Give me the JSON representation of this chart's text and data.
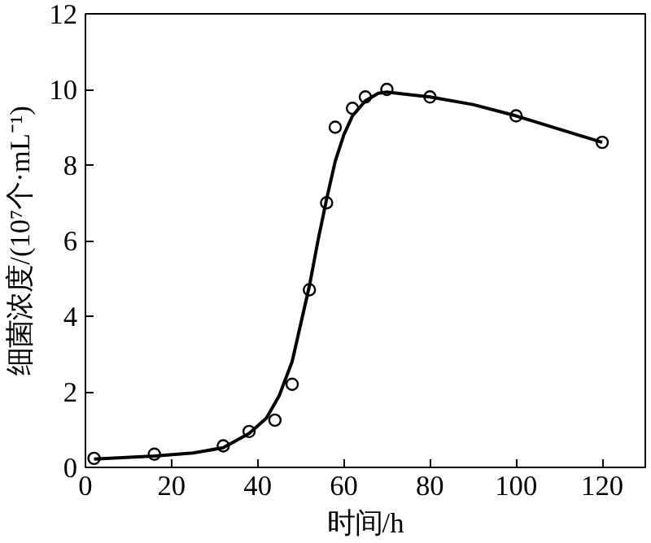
{
  "chart_data": {
    "type": "scatter",
    "xlabel": "时间/h",
    "ylabel": "细菌浓度/(10⁷个·mL⁻¹)",
    "xlim": [
      0,
      130
    ],
    "ylim": [
      0,
      12
    ],
    "xticks": [
      0,
      20,
      40,
      60,
      80,
      100,
      120
    ],
    "yticks": [
      0,
      2,
      4,
      6,
      8,
      10,
      12
    ],
    "grid": false,
    "marker": "circle",
    "series": [
      {
        "color": "#000000",
        "x": [
          2,
          16,
          32,
          38,
          44,
          48,
          52,
          56,
          58,
          62,
          65,
          70,
          80,
          100,
          120
        ],
        "values": [
          0.24,
          0.35,
          0.57,
          0.95,
          1.25,
          2.2,
          4.7,
          7.0,
          9.0,
          9.5,
          9.8,
          10.0,
          9.8,
          9.3,
          8.6
        ]
      },
      {
        "type": "line",
        "color": "#000000",
        "marker": "none",
        "line_style": "solid",
        "x": [
          2,
          16,
          25,
          32,
          38,
          42,
          45,
          48,
          50,
          52,
          54,
          56,
          58,
          60,
          62,
          65,
          68,
          70,
          80,
          90,
          100,
          110,
          120
        ],
        "values": [
          0.22,
          0.3,
          0.38,
          0.52,
          0.9,
          1.3,
          1.9,
          2.8,
          3.8,
          4.8,
          6.0,
          7.1,
          8.1,
          8.8,
          9.3,
          9.7,
          9.9,
          9.93,
          9.8,
          9.6,
          9.3,
          8.95,
          8.6
        ]
      }
    ]
  }
}
